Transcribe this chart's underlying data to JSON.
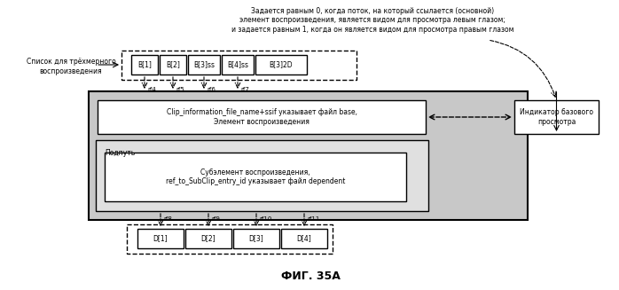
{
  "title": "ФИГ. 35A",
  "top_text": "Задается равным 0, когда поток, на который ссылается (основной)\nэлемент воспроизведения, является видом для просмотра левым глазом;\nи задается равным 1, когда он является видом для просмотра правым глазом",
  "left_label": "Список для трёхмерного\nвоспроизведения",
  "b_boxes": [
    "B[1]",
    "B[2]",
    "B[3]ss",
    "B[4]ss",
    "B[3]2D"
  ],
  "d_boxes": [
    "D[1]",
    "D[2]",
    "D[3]",
    "D[4]"
  ],
  "ref_labels_b": [
    "rf4",
    "rf5",
    "rf6",
    "rf7"
  ],
  "ref_labels_d": [
    "rf8",
    "rf9",
    "rf10",
    "rf11"
  ],
  "clip_text": "Clip_information_file_name+ssif указывает файл base,\nЭлемент воспроизведения",
  "subpath_label": "Подпуть",
  "sub_text": "Субэлемент воспроизведения,\nref_to_SubClip_entry_id указывает файл dependent",
  "indicator_text": "Индикатор базового\nпросмотра",
  "bg_color": "#d0d0d0",
  "white": "#ffffff",
  "black": "#000000",
  "gray_outer": "#b0b0b0"
}
